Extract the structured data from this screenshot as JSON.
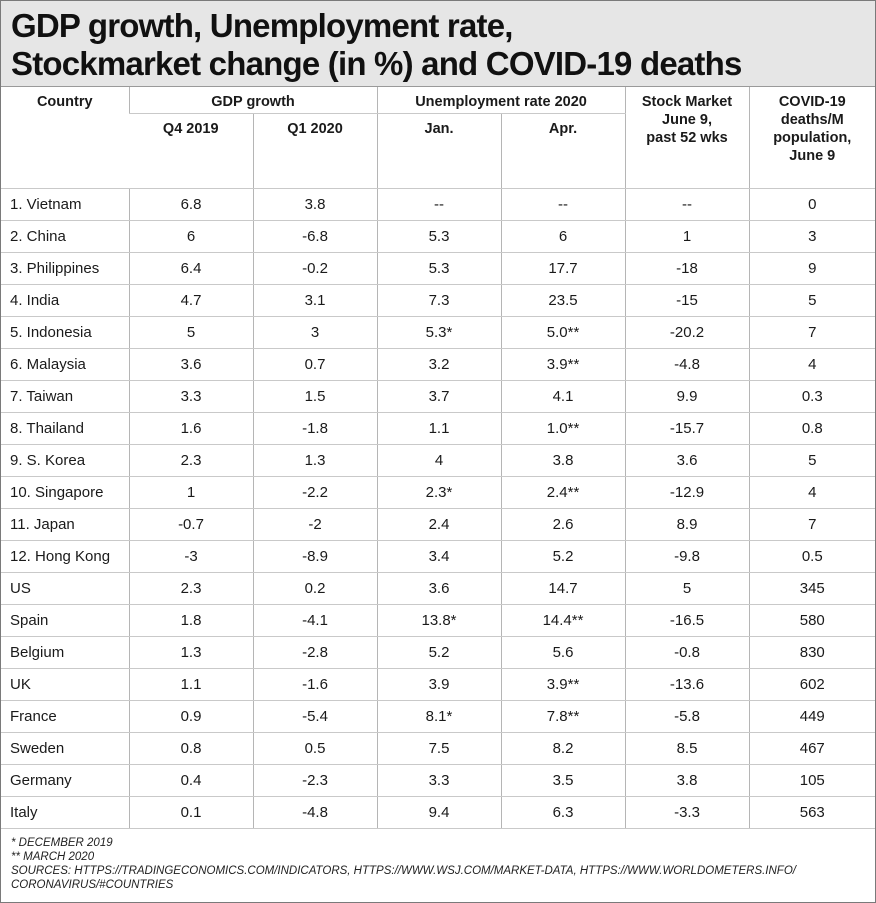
{
  "title": {
    "line1": "GDP growth, Unemployment rate,",
    "line2": "Stockmarket change (in %) and COVID-19 deaths"
  },
  "headers": {
    "country": "Country",
    "gdp_growth": "GDP growth",
    "unemployment": "Unemployment rate 2020",
    "stock_market": [
      "Stock Market",
      "June 9,",
      "past 52 wks"
    ],
    "covid": [
      "COVID-19",
      "deaths/M",
      "population,",
      "June 9"
    ],
    "q4_2019": "Q4 2019",
    "q1_2020": "Q1 2020",
    "jan": "Jan.",
    "apr": "Apr."
  },
  "rows": [
    {
      "country": "1. Vietnam",
      "q4": "6.8",
      "q1": "3.8",
      "jan": "--",
      "apr": "--",
      "stock": "--",
      "covid": "0"
    },
    {
      "country": "2. China",
      "q4": "6",
      "q1": "-6.8",
      "jan": "5.3",
      "apr": "6",
      "stock": "1",
      "covid": "3"
    },
    {
      "country": "3. Philippines",
      "q4": "6.4",
      "q1": "-0.2",
      "jan": "5.3",
      "apr": "17.7",
      "stock": "-18",
      "covid": "9"
    },
    {
      "country": "4. India",
      "q4": "4.7",
      "q1": "3.1",
      "jan": "7.3",
      "apr": "23.5",
      "stock": "-15",
      "covid": "5"
    },
    {
      "country": "5. Indonesia",
      "q4": "5",
      "q1": "3",
      "jan": "5.3*",
      "apr": "5.0**",
      "stock": "-20.2",
      "covid": "7"
    },
    {
      "country": "6. Malaysia",
      "q4": "3.6",
      "q1": "0.7",
      "jan": "3.2",
      "apr": "3.9**",
      "stock": "-4.8",
      "covid": "4"
    },
    {
      "country": "7. Taiwan",
      "q4": "3.3",
      "q1": "1.5",
      "jan": "3.7",
      "apr": "4.1",
      "stock": "9.9",
      "covid": "0.3"
    },
    {
      "country": "8. Thailand",
      "q4": "1.6",
      "q1": "-1.8",
      "jan": "1.1",
      "apr": "1.0**",
      "stock": "-15.7",
      "covid": "0.8"
    },
    {
      "country": "9. S. Korea",
      "q4": "2.3",
      "q1": "1.3",
      "jan": "4",
      "apr": "3.8",
      "stock": "3.6",
      "covid": "5"
    },
    {
      "country": "10. Singapore",
      "q4": "1",
      "q1": "-2.2",
      "jan": "2.3*",
      "apr": "2.4**",
      "stock": "-12.9",
      "covid": "4"
    },
    {
      "country": "11. Japan",
      "q4": "-0.7",
      "q1": "-2",
      "jan": "2.4",
      "apr": "2.6",
      "stock": "8.9",
      "covid": "7"
    },
    {
      "country": "12. Hong Kong",
      "q4": "-3",
      "q1": "-8.9",
      "jan": "3.4",
      "apr": "5.2",
      "stock": "-9.8",
      "covid": "0.5"
    },
    {
      "country": "US",
      "q4": "2.3",
      "q1": "0.2",
      "jan": "3.6",
      "apr": "14.7",
      "stock": "5",
      "covid": "345"
    },
    {
      "country": "Spain",
      "q4": "1.8",
      "q1": "-4.1",
      "jan": "13.8*",
      "apr": "14.4**",
      "stock": "-16.5",
      "covid": "580"
    },
    {
      "country": "Belgium",
      "q4": "1.3",
      "q1": "-2.8",
      "jan": "5.2",
      "apr": "5.6",
      "stock": "-0.8",
      "covid": "830"
    },
    {
      "country": "UK",
      "q4": "1.1",
      "q1": "-1.6",
      "jan": "3.9",
      "apr": "3.9**",
      "stock": "-13.6",
      "covid": "602"
    },
    {
      "country": "France",
      "q4": "0.9",
      "q1": "-5.4",
      "jan": "8.1*",
      "apr": "7.8**",
      "stock": "-5.8",
      "covid": "449"
    },
    {
      "country": "Sweden",
      "q4": "0.8",
      "q1": "0.5",
      "jan": "7.5",
      "apr": "8.2",
      "stock": "8.5",
      "covid": "467"
    },
    {
      "country": "Germany",
      "q4": "0.4",
      "q1": "-2.3",
      "jan": "3.3",
      "apr": "3.5",
      "stock": "3.8",
      "covid": "105"
    },
    {
      "country": "Italy",
      "q4": "0.1",
      "q1": "-4.8",
      "jan": "9.4",
      "apr": "6.3",
      "stock": "-3.3",
      "covid": "563"
    }
  ],
  "footnotes": {
    "note1": "* DECEMBER 2019",
    "note2": "** MARCH 2020",
    "sources_line1": "SOURCES: HTTPS://TRADINGECONOMICS.COM/INDICATORS,  HTTPS://WWW.WSJ.COM/MARKET-DATA, HTTPS://WWW.WORLDOMETERS.INFO/",
    "sources_line2": "CORONAVIRUS/#COUNTRIES"
  }
}
